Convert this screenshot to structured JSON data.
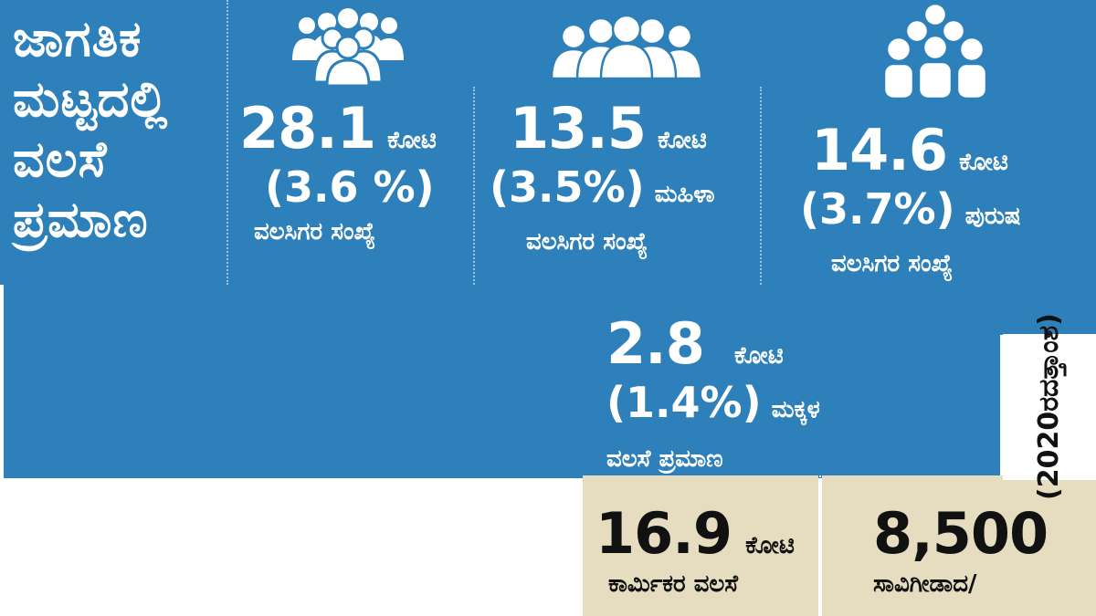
{
  "heading": [
    "ಜಾಗತಿಕ",
    "ಮಟ್ಟದಲ್ಲಿ",
    "ವಲಸೆ",
    "ಪ್ರಮಾಣ"
  ],
  "stats": {
    "total": {
      "number": "28.1",
      "unit": "ಕೋಟಿ",
      "percent": "(3.6 %)",
      "qualifier": "",
      "caption": "ವಲಸಿಗರ ಸಂಖ್ಯೆ"
    },
    "women": {
      "number": "13.5",
      "unit": "ಕೋಟಿ",
      "percent": "(3.5%)",
      "qualifier": "ಮಹಿಳಾ",
      "caption": "ವಲಸಿಗರ ಸಂಖ್ಯೆ"
    },
    "men": {
      "number": "14.6",
      "unit": "ಕೋಟಿ",
      "percent": "(3.7%)",
      "qualifier": "ಪುರುಷ",
      "caption": "ವಲಸಿಗರ ಸಂಖ್ಯೆ"
    },
    "children": {
      "number": "2.8",
      "unit": "ಕೋಟಿ",
      "percent": "(1.4%)",
      "qualifier": "ಮಕ್ಕಳ",
      "caption": "ವಲಸೆ ಪ್ರಮಾಣ"
    },
    "workers": {
      "number": "16.9",
      "unit": "ಕೋಟಿ",
      "caption": "ಕಾರ್ಮಿಕರ ವಲಸೆ"
    },
    "deaths": {
      "number": "8,500",
      "caption": "ಸಾವಿಗೀಡಾದ/"
    }
  },
  "side_note": {
    "year": "(2020ರ",
    "word": "ದತ್ತಾಂಶ)"
  },
  "icons": [
    "crowd-group-icon",
    "women-group-icon",
    "men-group-icon"
  ],
  "colors": {
    "panel": "#2d80b9",
    "beige": "#e6dcbf",
    "text_light": "#ffffff",
    "text_dark": "#111111"
  }
}
